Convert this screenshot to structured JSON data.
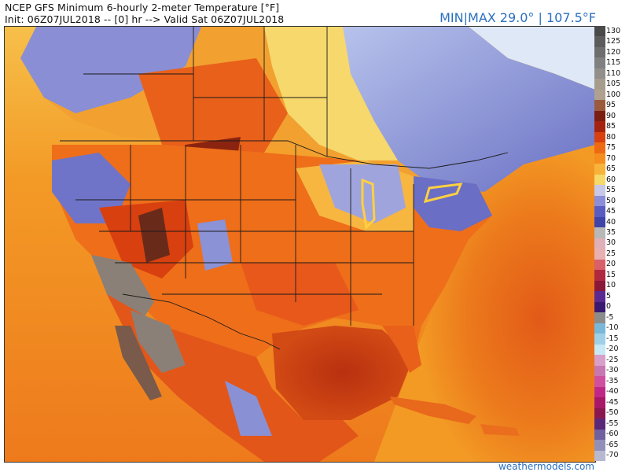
{
  "header": {
    "title_line1": "NCEP GFS Minimum 6-hourly 2-meter Temperature [°F]",
    "title_line2": "Init: 06Z07JUL2018 -- [0] hr --> Valid Sat 06Z07JUL2018",
    "minmax": "MIN|MAX 29.0° | 107.5°F"
  },
  "legend": {
    "ticks": [
      {
        "label": "130",
        "color": "#4a4a4a"
      },
      {
        "label": "125",
        "color": "#5c5c5c"
      },
      {
        "label": "120",
        "color": "#6e6e6e"
      },
      {
        "label": "115",
        "color": "#808080"
      },
      {
        "label": "110",
        "color": "#928f8a"
      },
      {
        "label": "105",
        "color": "#a69c8e"
      },
      {
        "label": "100",
        "color": "#b0a090"
      },
      {
        "label": "95",
        "color": "#9c5a3c"
      },
      {
        "label": "90",
        "color": "#7a1e10"
      },
      {
        "label": "85",
        "color": "#a5230e"
      },
      {
        "label": "80",
        "color": "#d8400f"
      },
      {
        "label": "75",
        "color": "#ee6a12"
      },
      {
        "label": "70",
        "color": "#f58d1f"
      },
      {
        "label": "65",
        "color": "#f8b33a"
      },
      {
        "label": "60",
        "color": "#f5d96a"
      },
      {
        "label": "55",
        "color": "#c8c8e8"
      },
      {
        "label": "50",
        "color": "#8c8ed8"
      },
      {
        "label": "45",
        "color": "#5a5cc0"
      },
      {
        "label": "40",
        "color": "#3e44a8"
      },
      {
        "label": "35",
        "color": "#b8b8b8"
      },
      {
        "label": "30",
        "color": "#e0b0b8"
      },
      {
        "label": "25",
        "color": "#e8b0b0"
      },
      {
        "label": "20",
        "color": "#d8606a"
      },
      {
        "label": "15",
        "color": "#b02840"
      },
      {
        "label": "10",
        "color": "#8a1838"
      },
      {
        "label": "5",
        "color": "#5a2a90"
      },
      {
        "label": "0",
        "color": "#3a1a70"
      },
      {
        "label": "-5",
        "color": "#8c8c8c"
      },
      {
        "label": "-10",
        "color": "#7ab8d8"
      },
      {
        "label": "-15",
        "color": "#a0d0e8"
      },
      {
        "label": "-20",
        "color": "#c8e8f4"
      },
      {
        "label": "-25",
        "color": "#d8a0c8"
      },
      {
        "label": "-30",
        "color": "#c878b0"
      },
      {
        "label": "-35",
        "color": "#d050a0"
      },
      {
        "label": "-40",
        "color": "#c02888"
      },
      {
        "label": "-45",
        "color": "#a81868"
      },
      {
        "label": "-50",
        "color": "#8a1850"
      },
      {
        "label": "-55",
        "color": "#5a2878"
      },
      {
        "label": "-60",
        "color": "#7060a0"
      },
      {
        "label": "-65",
        "color": "#9090b8"
      },
      {
        "label": "-70",
        "color": "#b8b8d0"
      }
    ]
  },
  "credit": "weathermodels.com",
  "colors": {
    "ocean_warm": "#f0901c",
    "gulf_hot": "#c83a12",
    "land_hot": "#e8601a",
    "land_very_hot": "#9a2a10",
    "mountain_gray": "#8a8078",
    "cool_purple": "#7478c8",
    "cold_blue": "#5a5cb0",
    "yellow": "#f5dc78",
    "boundary": "#1a1a1a"
  }
}
